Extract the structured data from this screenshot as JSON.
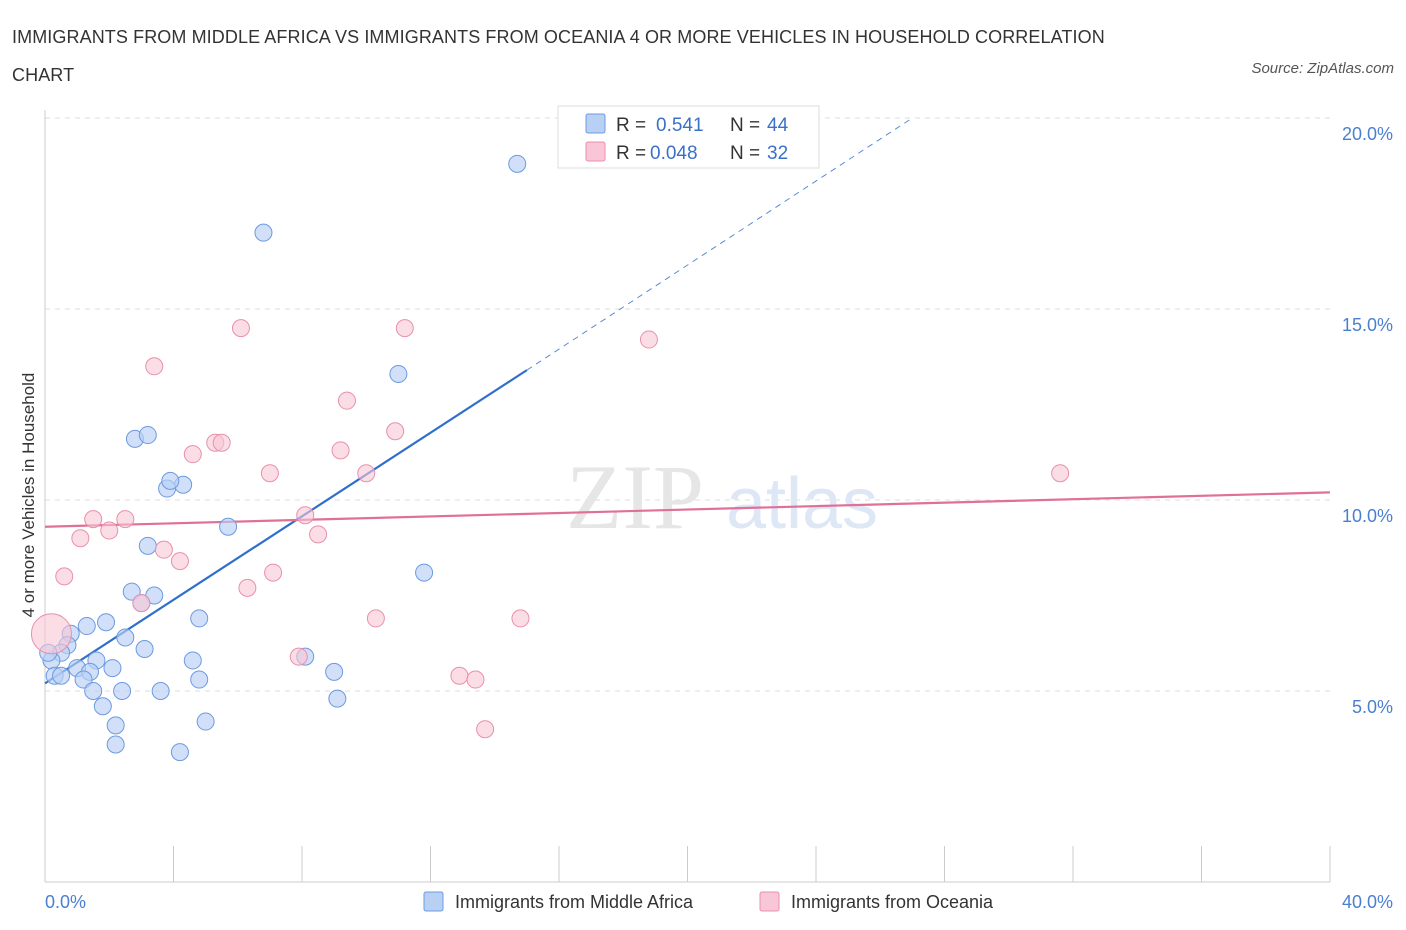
{
  "title": "IMMIGRANTS FROM MIDDLE AFRICA VS IMMIGRANTS FROM OCEANIA 4 OR MORE VEHICLES IN HOUSEHOLD CORRELATION CHART",
  "source": "Source: ZipAtlas.com",
  "watermark": {
    "zip": "ZIP",
    "atlas": "atlas"
  },
  "colors": {
    "blue_fill": "#b8d0f4",
    "blue_stroke": "#6c9ae0",
    "blue_line": "#2f6fcc",
    "pink_fill": "#f8c6d6",
    "pink_stroke": "#e890ad",
    "pink_line": "#e07096",
    "axis_text": "#4a7fd0",
    "grid": "#dddddd"
  },
  "legend": {
    "rows": [
      {
        "r_label": "R =",
        "r_value": "0.541",
        "n_label": "N =",
        "n_value": "44"
      },
      {
        "r_label": "R =",
        "r_value": "0.048",
        "n_label": "N =",
        "n_value": "32"
      }
    ]
  },
  "chart_data": {
    "type": "scatter",
    "title": "IMMIGRANTS FROM MIDDLE AFRICA VS IMMIGRANTS FROM OCEANIA 4 OR MORE VEHICLES IN HOUSEHOLD CORRELATION CHART",
    "xlabel": "",
    "ylabel": "4 or more Vehicles in Household",
    "xlim": [
      0,
      40
    ],
    "ylim": [
      0,
      20
    ],
    "x_tick_labels": [
      "0.0%",
      "40.0%"
    ],
    "y_ticks": [
      5,
      10,
      15,
      20
    ],
    "y_tick_labels": [
      "5.0%",
      "10.0%",
      "15.0%",
      "20.0%"
    ],
    "grid": true,
    "legend_position": "top-center",
    "series": [
      {
        "name": "Immigrants from Middle Africa",
        "color": "#6c9ae0",
        "points": [
          [
            14.7,
            18.8
          ],
          [
            6.8,
            17.0
          ],
          [
            11.0,
            13.3
          ],
          [
            2.8,
            11.6
          ],
          [
            3.2,
            11.7
          ],
          [
            3.8,
            10.3
          ],
          [
            4.3,
            10.4
          ],
          [
            3.9,
            10.5
          ],
          [
            5.7,
            9.3
          ],
          [
            11.8,
            8.1
          ],
          [
            3.2,
            8.8
          ],
          [
            2.7,
            7.6
          ],
          [
            3.4,
            7.5
          ],
          [
            3.0,
            7.3
          ],
          [
            4.8,
            6.9
          ],
          [
            1.9,
            6.8
          ],
          [
            1.3,
            6.7
          ],
          [
            0.8,
            6.5
          ],
          [
            2.5,
            6.4
          ],
          [
            0.7,
            6.2
          ],
          [
            3.1,
            6.1
          ],
          [
            0.5,
            6.0
          ],
          [
            8.1,
            5.9
          ],
          [
            1.6,
            5.8
          ],
          [
            4.6,
            5.8
          ],
          [
            0.2,
            5.8
          ],
          [
            1.0,
            5.6
          ],
          [
            2.1,
            5.6
          ],
          [
            1.4,
            5.5
          ],
          [
            9.0,
            5.5
          ],
          [
            0.3,
            5.4
          ],
          [
            0.5,
            5.4
          ],
          [
            1.2,
            5.3
          ],
          [
            4.8,
            5.3
          ],
          [
            1.5,
            5.0
          ],
          [
            2.4,
            5.0
          ],
          [
            3.6,
            5.0
          ],
          [
            9.1,
            4.8
          ],
          [
            1.8,
            4.6
          ],
          [
            2.2,
            4.1
          ],
          [
            5.0,
            4.2
          ],
          [
            2.2,
            3.6
          ],
          [
            4.2,
            3.4
          ],
          [
            0.1,
            6.0
          ]
        ],
        "trend": {
          "x": [
            0,
            15
          ],
          "y": [
            5.2,
            13.4
          ],
          "dashed_extension_to": [
            27,
            20
          ]
        }
      },
      {
        "name": "Immigrants from Oceania",
        "color": "#e890ad",
        "points": [
          [
            6.1,
            14.5
          ],
          [
            11.2,
            14.5
          ],
          [
            18.8,
            14.2
          ],
          [
            3.4,
            13.5
          ],
          [
            9.4,
            12.6
          ],
          [
            10.9,
            11.8
          ],
          [
            5.3,
            11.5
          ],
          [
            5.5,
            11.5
          ],
          [
            4.6,
            11.2
          ],
          [
            9.2,
            11.3
          ],
          [
            7.0,
            10.7
          ],
          [
            10.0,
            10.7
          ],
          [
            31.6,
            10.7
          ],
          [
            1.5,
            9.5
          ],
          [
            2.5,
            9.5
          ],
          [
            8.1,
            9.6
          ],
          [
            2.0,
            9.2
          ],
          [
            8.5,
            9.1
          ],
          [
            1.1,
            9.0
          ],
          [
            3.7,
            8.7
          ],
          [
            4.2,
            8.4
          ],
          [
            0.6,
            8.0
          ],
          [
            7.1,
            8.1
          ],
          [
            6.3,
            7.7
          ],
          [
            3.0,
            7.3
          ],
          [
            10.3,
            6.9
          ],
          [
            14.8,
            6.9
          ],
          [
            7.9,
            5.9
          ],
          [
            12.9,
            5.4
          ],
          [
            13.4,
            5.3
          ],
          [
            13.7,
            4.0
          ],
          [
            0.2,
            6.5
          ]
        ],
        "trend": {
          "x": [
            0,
            40
          ],
          "y": [
            9.3,
            10.2
          ]
        }
      }
    ]
  },
  "bottom_legend": {
    "items": [
      {
        "label": "Immigrants from Middle Africa"
      },
      {
        "label": "Immigrants from Oceania"
      }
    ]
  }
}
